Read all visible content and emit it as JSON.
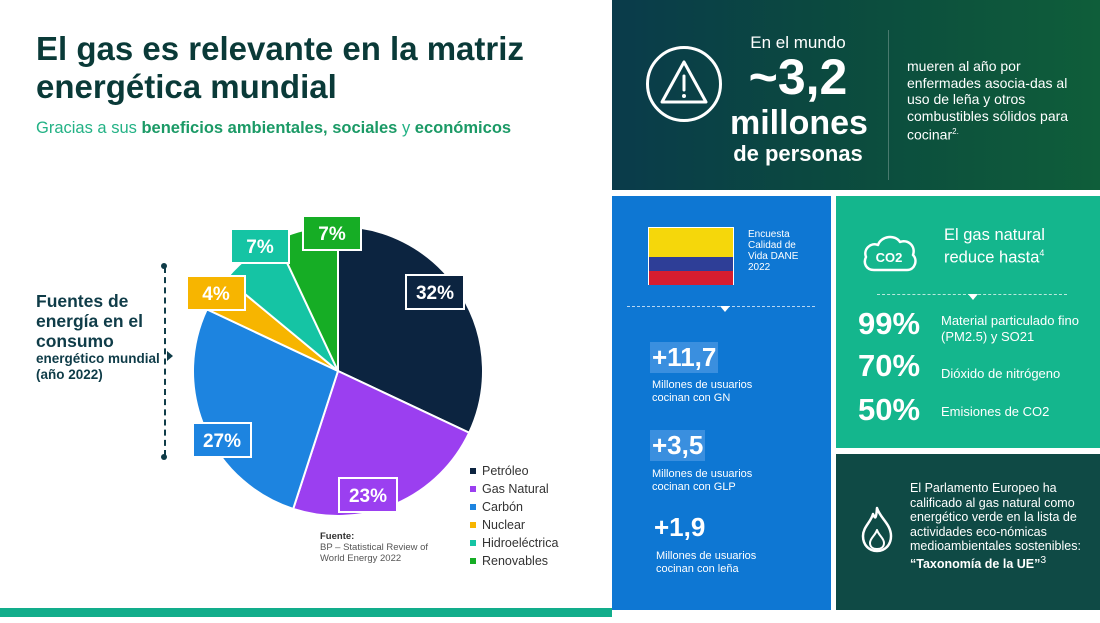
{
  "header": {
    "title": "El gas es relevante en la matriz energética mundial",
    "subtitle_prefix": "Gracias a sus",
    "subtitle_b1": "beneficios ambientales,",
    "subtitle_b2": "sociales",
    "subtitle_mid": "y",
    "subtitle_b3": "económicos"
  },
  "side_label": {
    "line1": "Fuentes de energía en el consumo",
    "line2": "energético mundial (año 2022)"
  },
  "chart_data": {
    "type": "pie",
    "title": "Fuentes de energía en el consumo energético mundial (año 2022)",
    "categories": [
      "Petróleo",
      "Gas Natural",
      "Carbón",
      "Nuclear",
      "Hidroeléctrica",
      "Renovables"
    ],
    "values": [
      32,
      23,
      27,
      4,
      7,
      7
    ],
    "labels": [
      "32%",
      "23%",
      "27%",
      "4%",
      "7%",
      "7%"
    ],
    "colors": [
      "#0c2440",
      "#9b3ff0",
      "#1d84e0",
      "#f7b500",
      "#15c4a4",
      "#16ad25"
    ],
    "legend_position": "bottom-right"
  },
  "source": {
    "label": "Fuente:",
    "line1": "BP – Statistical Review of",
    "line2": "World Energy 2022"
  },
  "top_panel": {
    "intro": "En el mundo",
    "number": "~3,2",
    "unit1": "millones",
    "unit2": "de personas",
    "description": "mueren al año por enfermades asocia-das al uso de leña y otros combustibles sólidos para cocinar",
    "description_sup": "2.",
    "icon": "warning-icon"
  },
  "blue_panel": {
    "survey": "Encuesta Calidad de Vida DANE 2022",
    "stats": [
      {
        "number": "+11,7",
        "label": "Millones de usuarios cocinan con GN"
      },
      {
        "number": "+3,5",
        "label": "Millones de usuarios cocinan con GLP"
      },
      {
        "number": "+1,9",
        "label": "Millones de usuarios cocinan con leña"
      }
    ]
  },
  "green_panel": {
    "title": "El gas natural reduce hasta",
    "title_sup": "4",
    "icon_text": "CO2",
    "rows": [
      {
        "pct": "99%",
        "label": "Material particulado fino (PM2.5) y SO21"
      },
      {
        "pct": "70%",
        "label": "Dióxido de nitrógeno"
      },
      {
        "pct": "50%",
        "label": "Emisiones de CO2"
      }
    ]
  },
  "dark_panel": {
    "text": "El Parlamento Europeo ha calificado al gas natural como energético verde en la lista de actividades eco-nómicas medioambientales sostenibles:",
    "bold": "“Taxonomía de la UE”",
    "ref": "3"
  },
  "colors": {
    "title": "#0a3a38",
    "accent_green": "#1a9e6b",
    "blue_panel": "#0e77d3",
    "green_panel": "#14b68d",
    "dark_panel": "#0f4a45"
  }
}
